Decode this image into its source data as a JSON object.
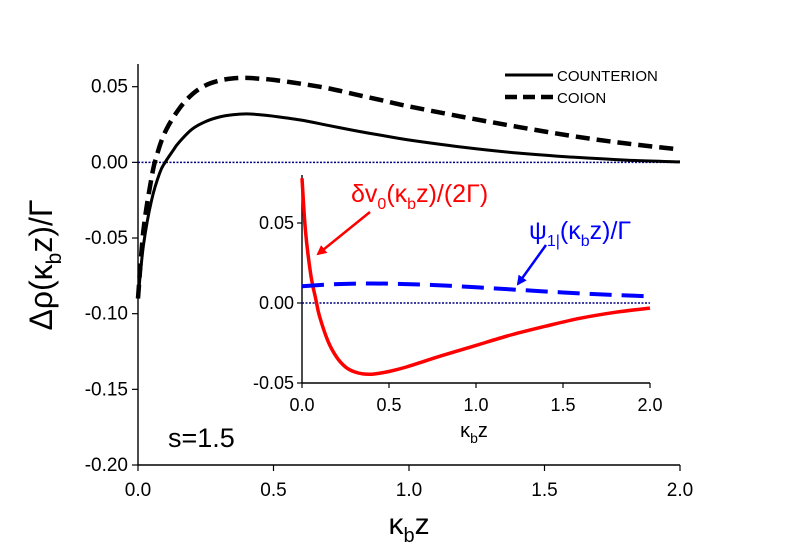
{
  "chart_data": [
    {
      "type": "line",
      "xlabel_main": "κ",
      "xlabel_sub": "b",
      "xlabel_tail": "z",
      "ylabel_pre": "Δρ(κ",
      "ylabel_sub": "b",
      "ylabel_post": "z)/Γ",
      "xlim": [
        0.0,
        2.0
      ],
      "ylim": [
        -0.2,
        0.065
      ],
      "xticks": [
        "0.0",
        "0.5",
        "1.0",
        "1.5",
        "2.0"
      ],
      "xtick_values": [
        0.0,
        0.5,
        1.0,
        1.5,
        2.0
      ],
      "yticks": [
        "-0.20",
        "-0.15",
        "-0.10",
        "-0.05",
        "0.00",
        "0.05"
      ],
      "ytick_values": [
        -0.2,
        -0.15,
        -0.1,
        -0.05,
        0.0,
        0.05
      ],
      "annotation": "s=1.5",
      "legend_position": "top-right",
      "reference_line": 0.0,
      "series": [
        {
          "name": "COUNTERION",
          "style": "solid",
          "color": "#000000",
          "x": [
            0.0,
            0.02,
            0.05,
            0.08,
            0.1,
            0.13,
            0.15,
            0.2,
            0.25,
            0.3,
            0.35,
            0.4,
            0.45,
            0.5,
            0.6,
            0.7,
            0.8,
            0.9,
            1.0,
            1.2,
            1.4,
            1.6,
            1.8,
            2.0
          ],
          "y": [
            -0.09,
            -0.055,
            -0.025,
            -0.007,
            0.0,
            0.008,
            0.013,
            0.022,
            0.027,
            0.03,
            0.0315,
            0.032,
            0.0315,
            0.0305,
            0.028,
            0.0245,
            0.021,
            0.0178,
            0.0148,
            0.01,
            0.0062,
            0.0035,
            0.0015,
            0.0003
          ]
        },
        {
          "name": "COION",
          "style": "dashed",
          "color": "#000000",
          "x": [
            0.0,
            0.02,
            0.05,
            0.07,
            0.1,
            0.15,
            0.2,
            0.25,
            0.3,
            0.35,
            0.4,
            0.45,
            0.5,
            0.6,
            0.7,
            0.8,
            0.9,
            1.0,
            1.2,
            1.4,
            1.6,
            1.8,
            2.0
          ],
          "y": [
            -0.09,
            -0.045,
            -0.01,
            0.005,
            0.02,
            0.035,
            0.045,
            0.051,
            0.054,
            0.0555,
            0.0558,
            0.0553,
            0.0545,
            0.052,
            0.049,
            0.045,
            0.041,
            0.037,
            0.03,
            0.0235,
            0.0175,
            0.0125,
            0.0085
          ]
        }
      ]
    },
    {
      "type": "line",
      "inset": true,
      "xlabel_main": "κ",
      "xlabel_sub": "b",
      "xlabel_tail": "z",
      "xlim": [
        0.0,
        2.0
      ],
      "ylim": [
        -0.05,
        0.08
      ],
      "xticks": [
        "0.0",
        "0.5",
        "1.0",
        "1.5",
        "2.0"
      ],
      "xtick_values": [
        0.0,
        0.5,
        1.0,
        1.5,
        2.0
      ],
      "yticks": [
        "-0.05",
        "0.00",
        "0.05"
      ],
      "ytick_values": [
        -0.05,
        0.0,
        0.05
      ],
      "reference_line": 0.0,
      "series": [
        {
          "label_pre": "δv",
          "label_sub": "0",
          "label_mid": "(κ",
          "label_sub2": "b",
          "label_post": "z)/(2Γ)",
          "style": "solid",
          "color": "#ff0000",
          "x": [
            0.0,
            0.02,
            0.05,
            0.08,
            0.1,
            0.15,
            0.2,
            0.25,
            0.3,
            0.35,
            0.4,
            0.45,
            0.5,
            0.6,
            0.7,
            0.8,
            1.0,
            1.2,
            1.4,
            1.6,
            1.8,
            2.0
          ],
          "y": [
            0.078,
            0.045,
            0.018,
            0.002,
            -0.008,
            -0.024,
            -0.034,
            -0.04,
            -0.043,
            -0.0443,
            -0.0445,
            -0.0438,
            -0.0428,
            -0.04,
            -0.0365,
            -0.033,
            -0.0265,
            -0.02,
            -0.0145,
            -0.0095,
            -0.0058,
            -0.0032
          ]
        },
        {
          "label_pre": "ψ",
          "label_sub": "1|",
          "label_mid": "(κ",
          "label_sub2": "b",
          "label_post": "z)/Γ",
          "style": "dashed",
          "color": "#0000ff",
          "x": [
            0.0,
            0.2,
            0.4,
            0.6,
            0.8,
            1.0,
            1.2,
            1.4,
            1.6,
            1.8,
            2.0
          ],
          "y": [
            0.0105,
            0.0118,
            0.0122,
            0.0118,
            0.011,
            0.0098,
            0.0085,
            0.0072,
            0.006,
            0.005,
            0.0042
          ]
        }
      ]
    }
  ],
  "colors": {
    "axis": "#000000",
    "reference_line": "#000080",
    "inset_red": "#ff0000",
    "inset_blue": "#0000ff"
  }
}
